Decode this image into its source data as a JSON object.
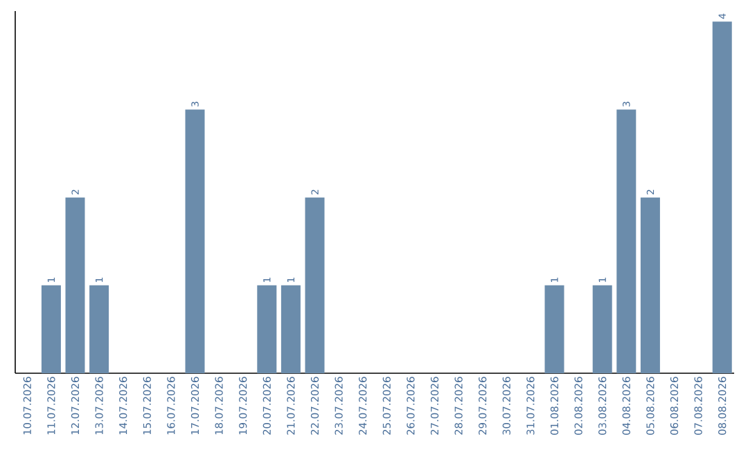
{
  "chart_data": {
    "type": "bar",
    "categories": [
      "10.07.2026",
      "11.07.2026",
      "12.07.2026",
      "13.07.2026",
      "14.07.2026",
      "15.07.2026",
      "16.07.2026",
      "17.07.2026",
      "18.07.2026",
      "19.07.2026",
      "20.07.2026",
      "21.07.2026",
      "22.07.2026",
      "23.07.2026",
      "24.07.2026",
      "25.07.2026",
      "26.07.2026",
      "27.07.2026",
      "28.07.2026",
      "29.07.2026",
      "30.07.2026",
      "31.07.2026",
      "01.08.2026",
      "02.08.2026",
      "03.08.2026",
      "04.08.2026",
      "05.08.2026",
      "06.08.2026",
      "07.08.2026",
      "08.08.2026"
    ],
    "values": [
      0,
      1,
      2,
      1,
      0,
      0,
      0,
      3,
      0,
      0,
      1,
      1,
      2,
      0,
      0,
      0,
      0,
      0,
      0,
      0,
      0,
      0,
      1,
      0,
      1,
      3,
      2,
      0,
      0,
      4
    ],
    "value_labels": [
      null,
      "1",
      "2",
      "1",
      null,
      null,
      null,
      "3",
      null,
      null,
      "1",
      "1",
      "2",
      null,
      null,
      null,
      null,
      null,
      null,
      null,
      null,
      null,
      "1",
      null,
      "1",
      "3",
      "2",
      null,
      null,
      "4"
    ],
    "color": "#6b8cab",
    "tick_labels": "x"
  }
}
